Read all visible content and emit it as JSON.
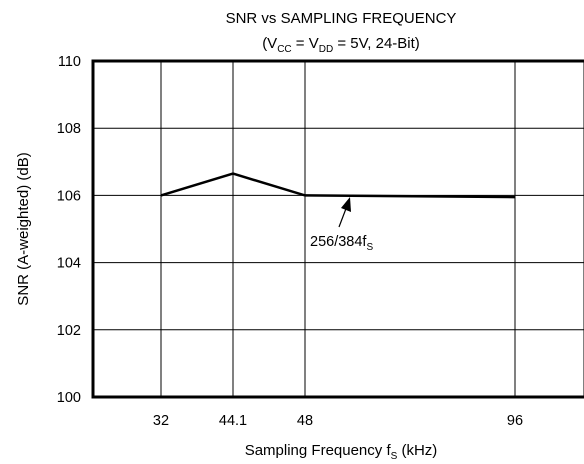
{
  "chart_data": {
    "type": "line",
    "title": "SNR vs SAMPLING FREQUENCY",
    "subtitle": {
      "open": "(V",
      "vcc_sub": "CC",
      "mid": " = V",
      "vdd_sub": "DD",
      "close": " = 5V, 24-Bit)"
    },
    "xlabel": {
      "main": "Sampling Frequency f",
      "sub": "S",
      "unit": " (kHz)"
    },
    "ylabel": "SNR (A-weighted) (dB)",
    "x_ticks": [
      32,
      44.1,
      48,
      96
    ],
    "y_ticks": [
      100,
      102,
      104,
      106,
      108,
      110
    ],
    "ylim": [
      100,
      110
    ],
    "grid": true,
    "series": [
      {
        "x": [
          32,
          44.1,
          48,
          96
        ],
        "y": [
          106.0,
          106.65,
          106.0,
          105.95
        ]
      }
    ],
    "annotation": {
      "text": "256/384f",
      "sub": "S",
      "x": 54.5,
      "y": 106.0
    }
  }
}
